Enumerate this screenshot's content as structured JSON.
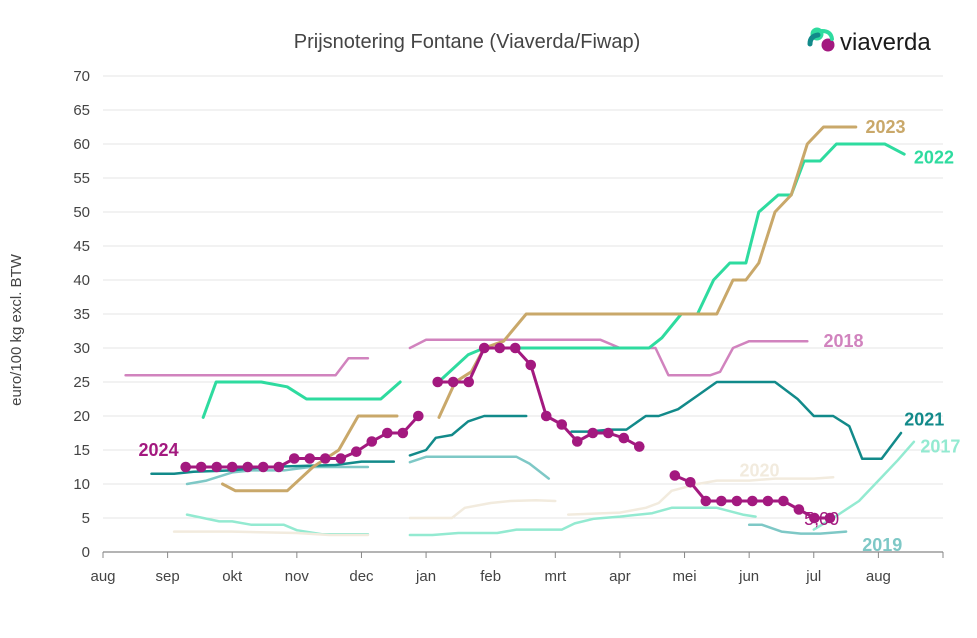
{
  "brand": {
    "name": "viaverda",
    "logo_icon": "viaverda-logo-icon"
  },
  "chart_data": {
    "type": "line",
    "title": "Prijsnotering Fontane (Viaverda/Fiwap)",
    "ylabel": "euro/100 kg excl. BTW",
    "xlabel": "",
    "ylim": [
      0,
      70
    ],
    "yticks": [
      0,
      5,
      10,
      15,
      20,
      25,
      30,
      35,
      40,
      45,
      50,
      55,
      60,
      65,
      70
    ],
    "xticks": [
      "aug",
      "sep",
      "okt",
      "nov",
      "dec",
      "jan",
      "feb",
      "mrt",
      "apr",
      "mei",
      "jun",
      "jul",
      "aug"
    ],
    "x_unit": "month index (0 = aug)",
    "grid": "horizontal",
    "value_annotation": {
      "text": "5,00",
      "x": 10.85,
      "y": 5.0,
      "color": "#a3197f"
    },
    "series": [
      {
        "name": "2018",
        "color": "#d183be",
        "width": 2.5,
        "segments": [
          [
            [
              0.35,
              26
            ],
            [
              3.6,
              26
            ],
            [
              3.8,
              28.5
            ],
            [
              4.1,
              28.5
            ]
          ],
          [
            [
              4.75,
              30
            ],
            [
              5.0,
              31.2
            ],
            [
              5.5,
              31.2
            ],
            [
              7.7,
              31.2
            ],
            [
              8.0,
              30
            ],
            [
              8.55,
              30
            ],
            [
              8.75,
              26
            ],
            [
              9.4,
              26
            ],
            [
              9.55,
              26.5
            ],
            [
              9.75,
              30
            ],
            [
              10.0,
              31
            ],
            [
              10.4,
              31
            ],
            [
              10.9,
              31
            ]
          ]
        ]
      },
      {
        "name": "2017",
        "color": "#93ead1",
        "width": 2.5,
        "segments": [
          [
            [
              1.3,
              5.5
            ],
            [
              1.8,
              4.5
            ],
            [
              2.0,
              4.5
            ],
            [
              2.3,
              4.0
            ],
            [
              2.8,
              4.0
            ],
            [
              3.0,
              3.2
            ],
            [
              3.4,
              2.6
            ],
            [
              4.1,
              2.6
            ]
          ],
          [
            [
              4.75,
              2.5
            ],
            [
              5.1,
              2.5
            ],
            [
              5.5,
              2.8
            ],
            [
              6.1,
              2.8
            ],
            [
              6.4,
              3.3
            ],
            [
              7.1,
              3.3
            ],
            [
              7.3,
              4.2
            ],
            [
              7.6,
              4.9
            ],
            [
              8.0,
              5.2
            ],
            [
              8.5,
              5.7
            ],
            [
              8.8,
              6.5
            ],
            [
              9.5,
              6.5
            ],
            [
              9.9,
              5.5
            ],
            [
              10.1,
              5.2
            ]
          ],
          [
            [
              11.0,
              3.3
            ],
            [
              11.3,
              5.0
            ],
            [
              11.7,
              7.5
            ],
            [
              12.0,
              10.5
            ],
            [
              12.3,
              13.5
            ],
            [
              12.55,
              16.2
            ]
          ]
        ]
      },
      {
        "name": "2019",
        "color": "#7ec8c6",
        "width": 2.5,
        "segments": [
          [
            [
              1.3,
              10.0
            ],
            [
              1.6,
              10.5
            ],
            [
              2.0,
              11.7
            ],
            [
              2.3,
              12.0
            ],
            [
              2.8,
              12.0
            ],
            [
              3.2,
              12.5
            ],
            [
              3.6,
              12.5
            ],
            [
              4.1,
              12.5
            ]
          ],
          [
            [
              4.75,
              13.2
            ],
            [
              5.0,
              14.0
            ],
            [
              6.0,
              14.0
            ],
            [
              6.4,
              14.0
            ],
            [
              6.6,
              13.0
            ],
            [
              6.9,
              10.8
            ]
          ],
          [
            [
              10.0,
              4.0
            ],
            [
              10.2,
              4.0
            ],
            [
              10.5,
              3.0
            ],
            [
              10.8,
              2.7
            ],
            [
              11.1,
              2.7
            ],
            [
              11.5,
              3.0
            ]
          ]
        ]
      },
      {
        "name": "2020",
        "color": "#f2ebde",
        "width": 2.5,
        "segments": [
          [
            [
              1.1,
              3.0
            ],
            [
              2.0,
              3.0
            ],
            [
              3.0,
              2.8
            ],
            [
              3.5,
              2.5
            ],
            [
              4.1,
              2.5
            ]
          ],
          [
            [
              4.75,
              5.0
            ],
            [
              5.4,
              5.0
            ],
            [
              5.6,
              6.5
            ],
            [
              6.0,
              7.2
            ],
            [
              6.3,
              7.5
            ],
            [
              6.7,
              7.6
            ],
            [
              7.0,
              7.5
            ]
          ],
          [
            [
              7.2,
              5.5
            ],
            [
              8.0,
              5.8
            ],
            [
              8.4,
              6.5
            ],
            [
              8.6,
              7.2
            ],
            [
              8.8,
              9.0
            ],
            [
              9.2,
              10.0
            ],
            [
              9.5,
              10.5
            ],
            [
              10.0,
              10.5
            ],
            [
              10.4,
              10.8
            ],
            [
              11.0,
              10.8
            ],
            [
              11.3,
              11.0
            ]
          ]
        ]
      },
      {
        "name": "2021",
        "color": "#128a8a",
        "width": 2.5,
        "segments": [
          [
            [
              0.75,
              11.5
            ],
            [
              1.1,
              11.5
            ],
            [
              1.4,
              11.8
            ],
            [
              2.0,
              12.0
            ],
            [
              2.5,
              12.5
            ],
            [
              3.6,
              12.8
            ],
            [
              4.0,
              13.3
            ],
            [
              4.5,
              13.3
            ]
          ],
          [
            [
              4.75,
              14.2
            ],
            [
              5.0,
              15.0
            ],
            [
              5.15,
              16.8
            ],
            [
              5.4,
              17.2
            ],
            [
              5.65,
              19.2
            ],
            [
              5.9,
              20.0
            ],
            [
              6.3,
              20.0
            ],
            [
              6.55,
              20.0
            ]
          ],
          [
            [
              7.25,
              17.7
            ],
            [
              7.5,
              17.7
            ],
            [
              7.85,
              18.0
            ],
            [
              8.1,
              18.0
            ],
            [
              8.4,
              20.0
            ],
            [
              8.6,
              20.0
            ],
            [
              8.9,
              21.0
            ],
            [
              9.2,
              23.0
            ],
            [
              9.5,
              25.0
            ],
            [
              9.9,
              25.0
            ],
            [
              10.2,
              25.0
            ],
            [
              10.4,
              25.0
            ],
            [
              10.75,
              22.5
            ],
            [
              11.0,
              20.0
            ],
            [
              11.3,
              20.0
            ],
            [
              11.55,
              18.5
            ],
            [
              11.75,
              13.7
            ],
            [
              12.05,
              13.7
            ],
            [
              12.35,
              17.5
            ]
          ]
        ]
      },
      {
        "name": "2022",
        "color": "#2edb9f",
        "width": 3,
        "segments": [
          [
            [
              1.55,
              19.8
            ],
            [
              1.75,
              25.0
            ],
            [
              2.1,
              25.0
            ],
            [
              2.45,
              25.0
            ],
            [
              2.85,
              24.3
            ],
            [
              3.15,
              22.5
            ],
            [
              3.6,
              22.5
            ],
            [
              4.3,
              22.5
            ],
            [
              4.6,
              25.0
            ]
          ],
          [
            [
              5.25,
              25.5
            ],
            [
              5.65,
              29.0
            ],
            [
              5.9,
              30.0
            ],
            [
              6.2,
              30.0
            ],
            [
              6.5,
              30.0
            ],
            [
              6.8,
              30.0
            ],
            [
              7.4,
              30.0
            ],
            [
              8.25,
              30.0
            ],
            [
              8.45,
              30.0
            ],
            [
              8.65,
              31.5
            ],
            [
              8.95,
              35.0
            ],
            [
              9.2,
              35.0
            ],
            [
              9.45,
              40.0
            ],
            [
              9.7,
              42.5
            ],
            [
              9.95,
              42.5
            ],
            [
              10.15,
              50.0
            ],
            [
              10.45,
              52.5
            ],
            [
              10.65,
              52.5
            ],
            [
              10.85,
              57.5
            ],
            [
              11.1,
              57.5
            ],
            [
              11.35,
              60.0
            ],
            [
              11.7,
              60.0
            ],
            [
              11.9,
              60.0
            ],
            [
              12.1,
              60.0
            ],
            [
              12.4,
              58.5
            ]
          ]
        ]
      },
      {
        "name": "2023",
        "color": "#c9a86a",
        "width": 3,
        "segments": [
          [
            [
              1.85,
              10.0
            ],
            [
              2.05,
              9.0
            ],
            [
              2.45,
              9.0
            ],
            [
              2.85,
              9.0
            ],
            [
              3.25,
              12.5
            ],
            [
              3.65,
              15.0
            ],
            [
              3.95,
              20.0
            ],
            [
              4.45,
              20.0
            ],
            [
              4.55,
              20.0
            ]
          ],
          [
            [
              5.2,
              19.8
            ],
            [
              5.45,
              25.0
            ],
            [
              5.7,
              26.5
            ],
            [
              5.9,
              30.0
            ],
            [
              6.2,
              31.0
            ],
            [
              6.55,
              35.0
            ],
            [
              7.2,
              35.0
            ],
            [
              7.6,
              35.0
            ],
            [
              8.0,
              35.0
            ],
            [
              8.45,
              35.0
            ],
            [
              8.85,
              35.0
            ],
            [
              9.15,
              35.0
            ],
            [
              9.5,
              35.0
            ],
            [
              9.75,
              40.0
            ],
            [
              9.95,
              40.0
            ],
            [
              10.15,
              42.5
            ],
            [
              10.4,
              50.0
            ],
            [
              10.65,
              52.5
            ],
            [
              10.9,
              60.0
            ],
            [
              11.15,
              62.5
            ],
            [
              11.45,
              62.5
            ],
            [
              11.65,
              62.5
            ]
          ]
        ]
      },
      {
        "name": "2024",
        "color": "#a3197f",
        "width": 3,
        "markers": true,
        "segments": [
          [
            [
              1.28,
              12.5
            ],
            [
              1.52,
              12.5
            ],
            [
              1.76,
              12.5
            ],
            [
              2.0,
              12.5
            ],
            [
              2.24,
              12.5
            ],
            [
              2.48,
              12.5
            ],
            [
              2.72,
              12.5
            ],
            [
              2.96,
              13.75
            ],
            [
              3.2,
              13.75
            ],
            [
              3.44,
              13.75
            ],
            [
              3.68,
              13.75
            ],
            [
              3.92,
              14.75
            ],
            [
              4.16,
              16.25
            ],
            [
              4.4,
              17.5
            ],
            [
              4.64,
              17.5
            ],
            [
              4.88,
              20.0
            ]
          ],
          [
            [
              5.18,
              25.0
            ],
            [
              5.42,
              25.0
            ],
            [
              5.66,
              25.0
            ],
            [
              5.9,
              30.0
            ],
            [
              6.14,
              30.0
            ],
            [
              6.38,
              30.0
            ],
            [
              6.62,
              27.5
            ],
            [
              6.86,
              20.0
            ],
            [
              7.1,
              18.75
            ],
            [
              7.34,
              16.25
            ],
            [
              7.58,
              17.5
            ],
            [
              7.82,
              17.5
            ],
            [
              8.06,
              16.75
            ],
            [
              8.3,
              15.5
            ]
          ],
          [
            [
              8.85,
              11.25
            ],
            [
              9.09,
              10.25
            ],
            [
              9.33,
              7.5
            ],
            [
              9.57,
              7.5
            ],
            [
              9.81,
              7.5
            ],
            [
              10.05,
              7.5
            ],
            [
              10.29,
              7.5
            ],
            [
              10.53,
              7.5
            ],
            [
              10.77,
              6.25
            ],
            [
              11.01,
              5.0
            ],
            [
              11.25,
              5.0
            ]
          ]
        ]
      }
    ],
    "series_labels": [
      {
        "name": "2023",
        "text": "2023",
        "x": 11.8,
        "y": 62.5
      },
      {
        "name": "2022",
        "text": "2022",
        "x": 12.55,
        "y": 58.0
      },
      {
        "name": "2018",
        "text": "2018",
        "x": 11.15,
        "y": 31.0
      },
      {
        "name": "2021",
        "text": "2021",
        "x": 12.4,
        "y": 19.5
      },
      {
        "name": "2017",
        "text": "2017",
        "x": 12.65,
        "y": 15.5
      },
      {
        "name": "2020",
        "text": "2020",
        "x": 9.85,
        "y": 12.0
      },
      {
        "name": "2019",
        "text": "2019",
        "x": 11.75,
        "y": 1.0
      },
      {
        "name": "2024",
        "text": "2024",
        "x": 0.55,
        "y": 15.0
      }
    ]
  }
}
